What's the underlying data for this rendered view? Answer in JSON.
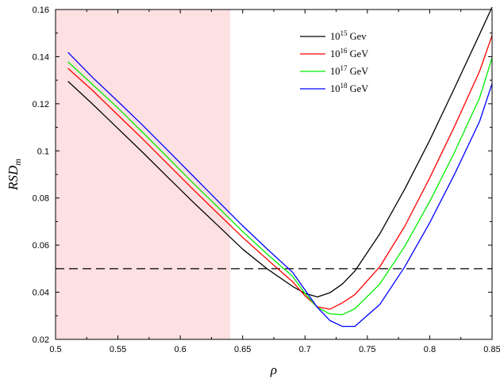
{
  "chart_data": {
    "type": "line",
    "title": "",
    "xlabel": "ρ",
    "ylabel": "RSD_m",
    "xlim": [
      0.5,
      0.85
    ],
    "ylim": [
      0.02,
      0.16
    ],
    "xticks": [
      "0.5",
      "0.55",
      "0.6",
      "0.65",
      "0.7",
      "0.75",
      "0.8",
      "0.85"
    ],
    "yticks": [
      "0.02",
      "0.04",
      "0.06",
      "0.08",
      "0.1",
      "0.12",
      "0.14",
      "0.16"
    ],
    "grid": false,
    "legend_position": "top-right",
    "shaded_region": {
      "x_from": 0.5,
      "x_to": 0.64,
      "color": "#fde0e2"
    },
    "reference_line": {
      "y": 0.05,
      "style": "dashed",
      "color": "#000000"
    },
    "series": [
      {
        "name": "10^15 Gev",
        "legend_base": "10",
        "legend_exp": "15",
        "legend_unit": "Gev",
        "color": "#000000",
        "x": [
          0.51,
          0.53,
          0.55,
          0.57,
          0.59,
          0.61,
          0.63,
          0.65,
          0.67,
          0.69,
          0.7,
          0.71,
          0.72,
          0.73,
          0.74,
          0.76,
          0.78,
          0.8,
          0.82,
          0.84,
          0.85
        ],
        "y": [
          0.1295,
          0.1197,
          0.1095,
          0.0993,
          0.0888,
          0.0784,
          0.0684,
          0.0583,
          0.0498,
          0.0425,
          0.0395,
          0.038,
          0.0398,
          0.0435,
          0.049,
          0.0648,
          0.0838,
          0.1045,
          0.1268,
          0.1495,
          0.161
        ]
      },
      {
        "name": "10^16 GeV",
        "legend_base": "10",
        "legend_exp": "16",
        "legend_unit": "GeV",
        "color": "#ff0000",
        "x": [
          0.51,
          0.53,
          0.55,
          0.57,
          0.59,
          0.61,
          0.63,
          0.65,
          0.67,
          0.69,
          0.7,
          0.71,
          0.72,
          0.73,
          0.74,
          0.76,
          0.78,
          0.8,
          0.82,
          0.84,
          0.85
        ],
        "y": [
          0.135,
          0.1255,
          0.1152,
          0.105,
          0.0944,
          0.0838,
          0.0735,
          0.0633,
          0.0538,
          0.0445,
          0.0385,
          0.0338,
          0.0328,
          0.0355,
          0.039,
          0.0508,
          0.068,
          0.0885,
          0.1105,
          0.1338,
          0.149
        ]
      },
      {
        "name": "10^17 GeV",
        "legend_base": "10",
        "legend_exp": "17",
        "legend_unit": "GeV",
        "color": "#00ee00",
        "x": [
          0.51,
          0.53,
          0.55,
          0.57,
          0.59,
          0.61,
          0.63,
          0.65,
          0.67,
          0.69,
          0.7,
          0.71,
          0.72,
          0.73,
          0.74,
          0.76,
          0.78,
          0.8,
          0.82,
          0.84,
          0.85
        ],
        "y": [
          0.1378,
          0.128,
          0.1182,
          0.1078,
          0.0972,
          0.0865,
          0.0762,
          0.0658,
          0.056,
          0.0468,
          0.0395,
          0.0335,
          0.0308,
          0.0305,
          0.033,
          0.0435,
          0.0595,
          0.0785,
          0.0995,
          0.1225,
          0.1395
        ]
      },
      {
        "name": "10^18 GeV",
        "legend_base": "10",
        "legend_exp": "18",
        "legend_unit": "GeV",
        "color": "#0000ff",
        "x": [
          0.51,
          0.53,
          0.55,
          0.57,
          0.59,
          0.61,
          0.63,
          0.65,
          0.67,
          0.69,
          0.7,
          0.71,
          0.72,
          0.73,
          0.74,
          0.76,
          0.78,
          0.8,
          0.82,
          0.84,
          0.85
        ],
        "y": [
          0.1418,
          0.131,
          0.121,
          0.1108,
          0.1002,
          0.0895,
          0.0788,
          0.0682,
          0.0582,
          0.0485,
          0.041,
          0.0335,
          0.028,
          0.0255,
          0.0255,
          0.0348,
          0.0508,
          0.0695,
          0.0902,
          0.1125,
          0.1285
        ]
      }
    ]
  }
}
